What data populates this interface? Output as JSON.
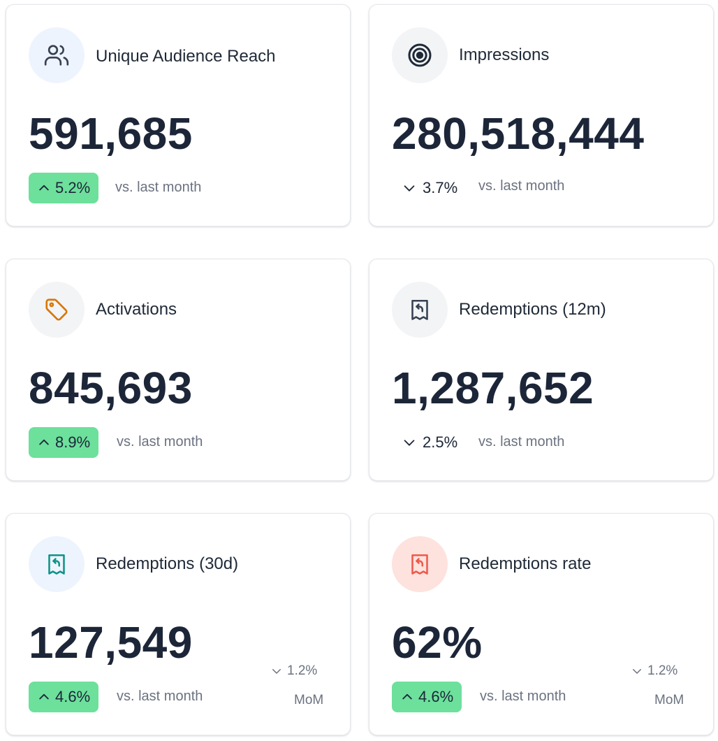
{
  "cards": [
    {
      "title": "Unique Audience Reach",
      "value": "591,685",
      "change": "5.2%",
      "direction": "up",
      "compare_label": "vs. last month",
      "icon": "users-icon",
      "icon_bg": "#eef4fe",
      "icon_color": "#374151"
    },
    {
      "title": "Impressions",
      "value": "280,518,444",
      "change": "3.7%",
      "direction": "down",
      "compare_label": "vs. last month",
      "icon": "target-icon",
      "icon_bg": "#f3f4f6",
      "icon_color": "#1f2937"
    },
    {
      "title": "Activations",
      "value": "845,693",
      "change": "8.9%",
      "direction": "up",
      "compare_label": "vs. last month",
      "icon": "tag-icon",
      "icon_bg": "#f3f4f6",
      "icon_color": "#d97706"
    },
    {
      "title": "Redemptions (12m)",
      "value": "1,287,652",
      "change": "2.5%",
      "direction": "down",
      "compare_label": "vs. last month",
      "icon": "receipt-refund-icon",
      "icon_bg": "#f3f4f6",
      "icon_color": "#374151"
    },
    {
      "title": "Redemptions (30d)",
      "value": "127,549",
      "change": "4.6%",
      "direction": "up",
      "compare_label": "vs. last month",
      "mom_change": "1.2%",
      "mom_label": "MoM",
      "icon": "receipt-refund-icon",
      "icon_bg": "#eef4fe",
      "icon_color": "#0d9488"
    },
    {
      "title": "Redemptions rate",
      "value": "62%",
      "change": "4.6%",
      "direction": "up",
      "compare_label": "vs. last month",
      "mom_change": "1.2%",
      "mom_label": "MoM",
      "icon": "receipt-refund-icon",
      "icon_bg": "#fde2de",
      "icon_color": "#ef5a4a"
    }
  ],
  "colors": {
    "positive_badge": "#6de09c",
    "value_text": "#1c2638",
    "muted_text": "#6b7280"
  }
}
